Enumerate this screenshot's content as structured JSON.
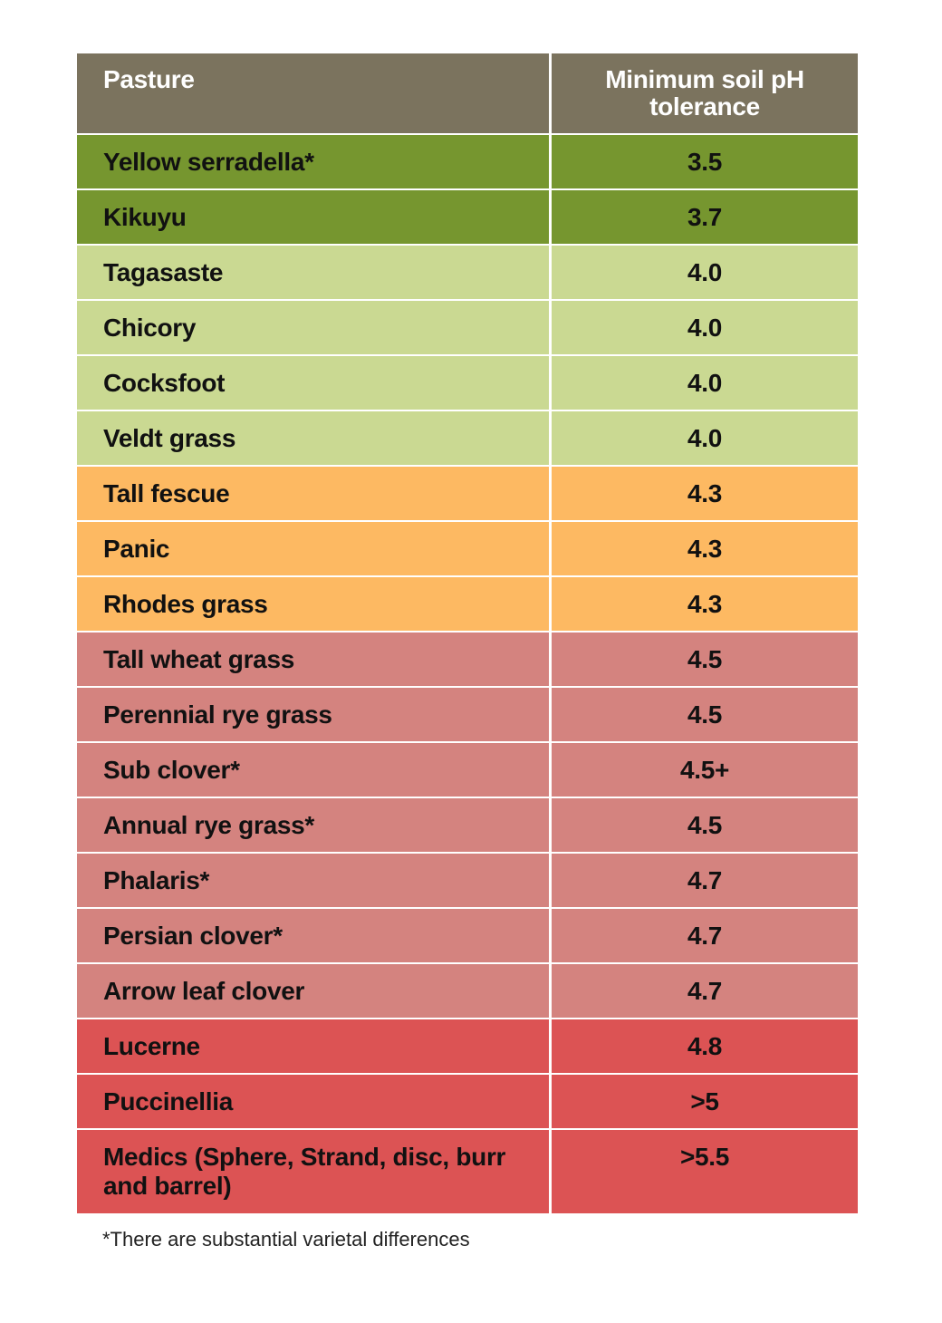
{
  "table": {
    "headers": [
      "Pasture",
      "Minimum soil pH tolerance"
    ],
    "colors": {
      "header": "#7b735e",
      "dark_green": "#76962f",
      "light_green": "#cad992",
      "orange": "#fdb962",
      "pink": "#d4837f",
      "red": "#dc5354"
    },
    "rows": [
      {
        "pasture": "Yellow serradella*",
        "ph": "3.5",
        "color": "dark_green"
      },
      {
        "pasture": "Kikuyu",
        "ph": "3.7",
        "color": "dark_green"
      },
      {
        "pasture": "Tagasaste",
        "ph": "4.0",
        "color": "light_green"
      },
      {
        "pasture": "Chicory",
        "ph": "4.0",
        "color": "light_green"
      },
      {
        "pasture": "Cocksfoot",
        "ph": "4.0",
        "color": "light_green"
      },
      {
        "pasture": "Veldt grass",
        "ph": "4.0",
        "color": "light_green"
      },
      {
        "pasture": "Tall fescue",
        "ph": "4.3",
        "color": "orange"
      },
      {
        "pasture": "Panic",
        "ph": "4.3",
        "color": "orange"
      },
      {
        "pasture": "Rhodes grass",
        "ph": "4.3",
        "color": "orange"
      },
      {
        "pasture": "Tall wheat grass",
        "ph": "4.5",
        "color": "pink"
      },
      {
        "pasture": "Perennial rye grass",
        "ph": "4.5",
        "color": "pink"
      },
      {
        "pasture": "Sub clover*",
        "ph": "4.5+",
        "color": "pink"
      },
      {
        "pasture": "Annual rye grass*",
        "ph": "4.5",
        "color": "pink"
      },
      {
        "pasture": "Phalaris*",
        "ph": "4.7",
        "color": "pink"
      },
      {
        "pasture": "Persian clover*",
        "ph": "4.7",
        "color": "pink"
      },
      {
        "pasture": "Arrow leaf clover",
        "ph": "4.7",
        "color": "pink"
      },
      {
        "pasture": "Lucerne",
        "ph": "4.8",
        "color": "red"
      },
      {
        "pasture": "Puccinellia",
        "ph": ">5",
        "color": "red"
      },
      {
        "pasture": "Medics (Sphere, Strand, disc, burr and barrel)",
        "ph": ">5.5",
        "color": "red"
      }
    ]
  },
  "footnote": "*There are substantial varietal differences"
}
